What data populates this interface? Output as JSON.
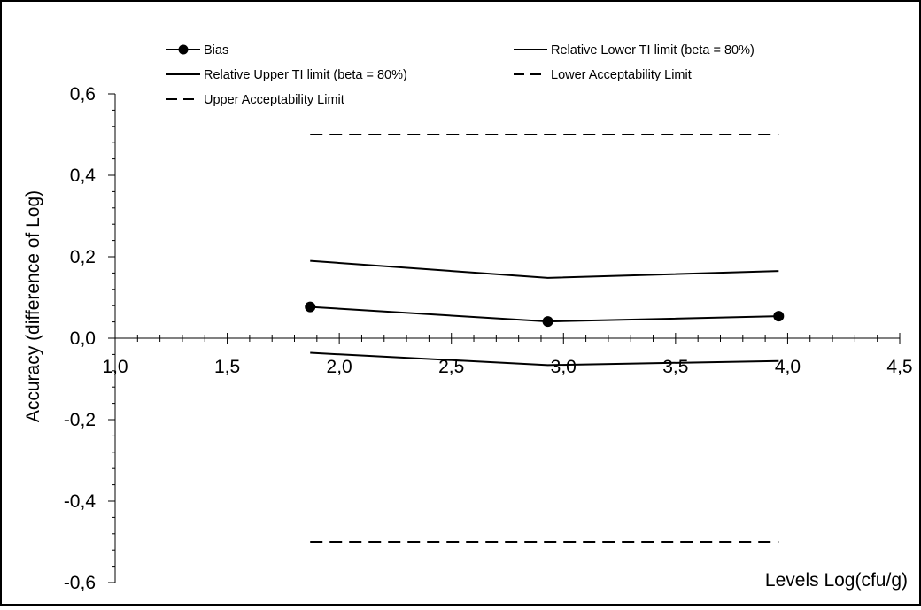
{
  "chart_data": {
    "type": "line",
    "title": "",
    "xlabel": "Levels Log(cfu/g)",
    "ylabel": "Accuracy (difference of  Log)",
    "xlim": [
      1.0,
      4.5
    ],
    "ylim": [
      -0.6,
      0.6
    ],
    "x_ticks": [
      "1,0",
      "1,5",
      "2,0",
      "2,5",
      "3,0",
      "3,5",
      "4,0",
      "4,5"
    ],
    "y_ticks": [
      "-0,6",
      "-0,4",
      "-0,2",
      "0,0",
      "0,2",
      "0,4",
      "0,6"
    ],
    "grid": false,
    "legend_position": "top",
    "series": [
      {
        "name": "Bias",
        "style": "line-marker",
        "color": "#000000",
        "x": [
          1.87,
          2.93,
          3.96
        ],
        "y": [
          0.077,
          0.041,
          0.054
        ]
      },
      {
        "name": "Relative Lower TI limit (beta = 80%)",
        "style": "solid",
        "color": "#000000",
        "x": [
          1.87,
          2.93,
          3.96
        ],
        "y": [
          -0.036,
          -0.066,
          -0.056
        ]
      },
      {
        "name": "Relative Upper TI limit (beta = 80%)",
        "style": "solid",
        "color": "#000000",
        "x": [
          1.87,
          2.93,
          3.96
        ],
        "y": [
          0.19,
          0.148,
          0.165
        ]
      },
      {
        "name": "Lower Acceptability Limit",
        "style": "dashed",
        "color": "#000000",
        "x": [
          1.87,
          3.96
        ],
        "y": [
          -0.5,
          -0.5
        ]
      },
      {
        "name": "Upper Acceptability Limit",
        "style": "dashed",
        "color": "#000000",
        "x": [
          1.87,
          3.96
        ],
        "y": [
          0.5,
          0.5
        ]
      }
    ]
  }
}
